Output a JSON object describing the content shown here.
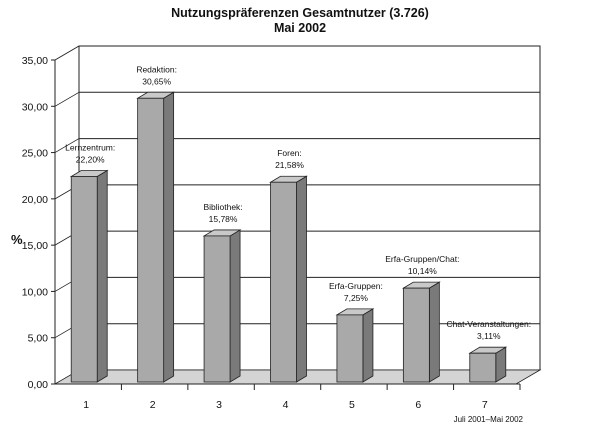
{
  "chart_data": {
    "type": "bar",
    "title_line1": "Nutzungspräferenzen Gesamtnutzer (3.726)",
    "title_line2": "Mai 2002",
    "ylabel": "%",
    "ylim": [
      0,
      35
    ],
    "ytick_labels": [
      "0,00",
      "5,00",
      "10,00",
      "15,00",
      "20,00",
      "25,00",
      "30,00",
      "35,00"
    ],
    "grid": true,
    "categories": [
      "1",
      "2",
      "3",
      "4",
      "5",
      "6",
      "7"
    ],
    "values": [
      22.2,
      30.65,
      15.78,
      21.58,
      7.25,
      10.14,
      3.11
    ],
    "bar_names": [
      "Lernzentrum:",
      "Redaktion:",
      "Bibliothek:",
      "Foren:",
      "Erfa-Gruppen:",
      "Erfa-Gruppen/Chat:",
      "Chat-Veranstaltungen:"
    ],
    "value_labels": [
      "22,20%",
      "30,65%",
      "15,78%",
      "21,58%",
      "7,25%",
      "10,14%",
      "3,11%"
    ],
    "footnote": "Juli 2001–Mai 2002",
    "colors": {
      "bar_front": "#a9a9a9",
      "bar_side": "#7a7a7a",
      "bar_top": "#c9c9c9",
      "floor": "#d4d4d4"
    }
  }
}
